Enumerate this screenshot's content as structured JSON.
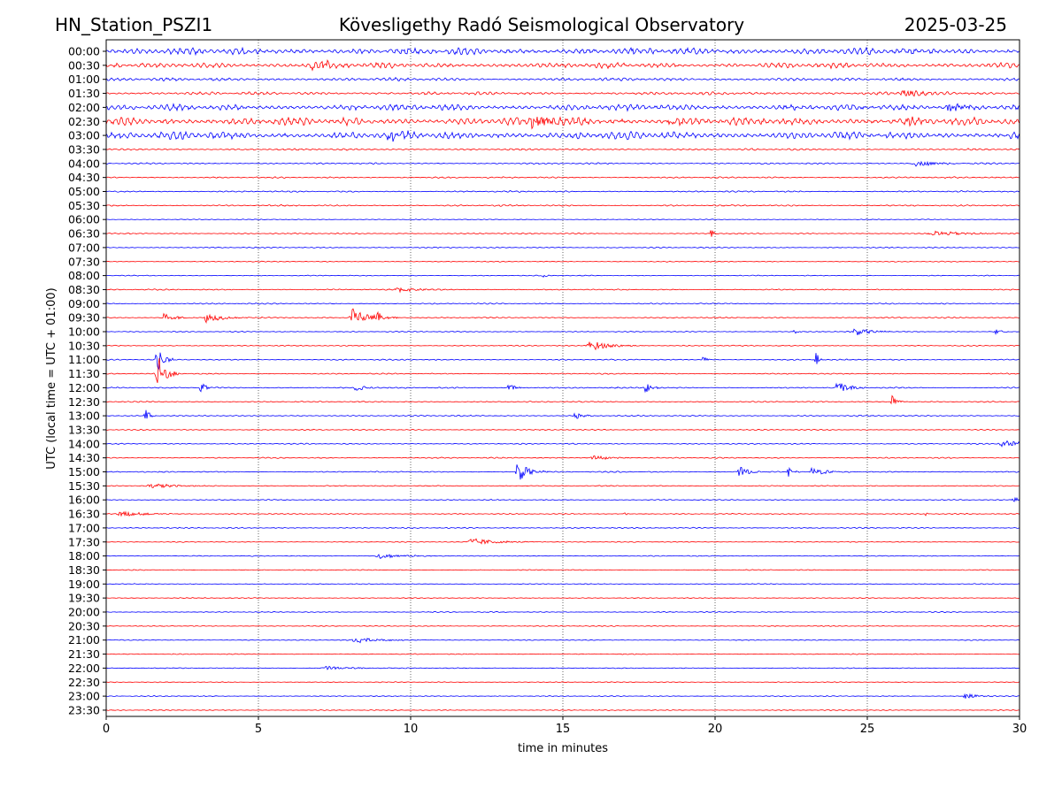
{
  "header": {
    "station": "HN_Station_PSZI1",
    "observatory": "Kövesligethy Radó Seismological Observatory",
    "date": "2025-03-25"
  },
  "chart_data": {
    "type": "line",
    "title": "Kövesligethy Radó Seismological Observatory",
    "xlabel": "time in minutes",
    "ylabel": "UTC (local time = UTC + 01:00)",
    "xlim": [
      0,
      30
    ],
    "xticks": [
      "0",
      "5",
      "10",
      "15",
      "20",
      "25",
      "30"
    ],
    "grid": "vertical dotted lines at 5-minute ticks",
    "row_labels": [
      "00:00",
      "00:30",
      "01:00",
      "01:30",
      "02:00",
      "02:30",
      "03:00",
      "03:30",
      "04:00",
      "04:30",
      "05:00",
      "05:30",
      "06:00",
      "06:30",
      "07:00",
      "07:30",
      "08:00",
      "08:30",
      "09:00",
      "09:30",
      "10:00",
      "10:30",
      "11:00",
      "11:30",
      "12:00",
      "12:30",
      "13:00",
      "13:30",
      "14:00",
      "14:30",
      "15:00",
      "15:30",
      "16:00",
      "16:30",
      "17:00",
      "17:30",
      "18:00",
      "18:30",
      "19:00",
      "19:30",
      "20:00",
      "20:30",
      "21:00",
      "21:30",
      "22:00",
      "22:30",
      "23:00",
      "23:30"
    ],
    "colors": [
      "#0000ff",
      "#ff0000"
    ],
    "row_noise_levels": [
      4.5,
      3.5,
      2,
      2,
      4,
      5,
      5,
      1.2,
      1,
      1,
      1,
      1,
      0.6,
      0.8,
      0.8,
      0.6,
      0.6,
      0.8,
      0.8,
      0.8,
      0.7,
      0.7,
      0.8,
      0.8,
      0.9,
      0.8,
      0.9,
      0.7,
      0.8,
      0.8,
      0.8,
      0.7,
      0.7,
      0.7,
      0.8,
      0.6,
      0.6,
      0.6,
      0.6,
      0.6,
      0.6,
      0.6,
      0.6,
      0.6,
      0.6,
      0.6,
      0.6,
      0.6
    ],
    "events": [
      {
        "row": 23,
        "minute": 1.65,
        "amplitude": 28,
        "duration_min": 0.25
      },
      {
        "row": 22,
        "minute": 1.65,
        "amplitude": 16,
        "duration_min": 0.2
      },
      {
        "row": 26,
        "minute": 1.25,
        "amplitude": 12,
        "duration_min": 0.12
      },
      {
        "row": 19,
        "minute": 1.9,
        "amplitude": 7,
        "duration_min": 0.3
      },
      {
        "row": 19,
        "minute": 3.3,
        "amplitude": 6,
        "duration_min": 0.5
      },
      {
        "row": 19,
        "minute": 8.1,
        "amplitude": 12,
        "duration_min": 0.5
      },
      {
        "row": 19,
        "minute": 8.9,
        "amplitude": 5,
        "duration_min": 0.2
      },
      {
        "row": 21,
        "minute": 15.9,
        "amplitude": 6,
        "duration_min": 0.6
      },
      {
        "row": 22,
        "minute": 23.3,
        "amplitude": 11,
        "duration_min": 0.1
      },
      {
        "row": 22,
        "minute": 19.6,
        "amplitude": 6,
        "duration_min": 0.1
      },
      {
        "row": 24,
        "minute": 3.1,
        "amplitude": 6,
        "duration_min": 0.2
      },
      {
        "row": 24,
        "minute": 8.2,
        "amplitude": 4,
        "duration_min": 0.3
      },
      {
        "row": 24,
        "minute": 13.2,
        "amplitude": 5,
        "duration_min": 0.2
      },
      {
        "row": 24,
        "minute": 17.7,
        "amplitude": 7,
        "duration_min": 0.2
      },
      {
        "row": 24,
        "minute": 24.0,
        "amplitude": 9,
        "duration_min": 0.3
      },
      {
        "row": 25,
        "minute": 25.8,
        "amplitude": 8,
        "duration_min": 0.15
      },
      {
        "row": 26,
        "minute": 15.4,
        "amplitude": 5,
        "duration_min": 0.2
      },
      {
        "row": 30,
        "minute": 13.5,
        "amplitude": 12,
        "duration_min": 0.35
      },
      {
        "row": 30,
        "minute": 20.8,
        "amplitude": 6,
        "duration_min": 0.3
      },
      {
        "row": 30,
        "minute": 22.4,
        "amplitude": 6,
        "duration_min": 0.15
      },
      {
        "row": 30,
        "minute": 23.2,
        "amplitude": 6,
        "duration_min": 0.4
      },
      {
        "row": 28,
        "minute": 29.5,
        "amplitude": 4,
        "duration_min": 1.0
      },
      {
        "row": 16,
        "minute": 14.3,
        "amplitude": 7,
        "duration_min": 0.08
      },
      {
        "row": 13,
        "minute": 19.85,
        "amplitude": 7,
        "duration_min": 0.1
      },
      {
        "row": 13,
        "minute": 27.2,
        "amplitude": 3,
        "duration_min": 1.0
      },
      {
        "row": 8,
        "minute": 26.6,
        "amplitude": 3,
        "duration_min": 0.8
      },
      {
        "row": 35,
        "minute": 12.0,
        "amplitude": 4,
        "duration_min": 0.8
      },
      {
        "row": 33,
        "minute": 0.5,
        "amplitude": 3,
        "duration_min": 0.8
      },
      {
        "row": 31,
        "minute": 1.5,
        "amplitude": 3,
        "duration_min": 0.7
      },
      {
        "row": 36,
        "minute": 9.0,
        "amplitude": 3,
        "duration_min": 0.8
      },
      {
        "row": 42,
        "minute": 8.2,
        "amplitude": 3,
        "duration_min": 0.8
      },
      {
        "row": 44,
        "minute": 7.2,
        "amplitude": 2.5,
        "duration_min": 0.7
      },
      {
        "row": 46,
        "minute": 28.2,
        "amplitude": 3,
        "duration_min": 0.4
      },
      {
        "row": 32,
        "minute": 29.8,
        "amplitude": 3,
        "duration_min": 0.3
      },
      {
        "row": 17,
        "minute": 9.6,
        "amplitude": 3,
        "duration_min": 0.6
      },
      {
        "row": 20,
        "minute": 22.6,
        "amplitude": 4,
        "duration_min": 0.1
      },
      {
        "row": 20,
        "minute": 24.6,
        "amplitude": 4,
        "duration_min": 0.6
      },
      {
        "row": 20,
        "minute": 29.2,
        "amplitude": 3,
        "duration_min": 0.2
      },
      {
        "row": 29,
        "minute": 16.0,
        "amplitude": 3,
        "duration_min": 0.5
      },
      {
        "row": 33,
        "minute": 17.0,
        "amplitude": 3,
        "duration_min": 0.08
      },
      {
        "row": 33,
        "minute": 26.9,
        "amplitude": 3,
        "duration_min": 0.08
      },
      {
        "row": 1,
        "minute": 6.8,
        "amplitude": 6,
        "duration_min": 0.6
      },
      {
        "row": 5,
        "minute": 14.0,
        "amplitude": 7,
        "duration_min": 0.6
      },
      {
        "row": 5,
        "minute": 18.5,
        "amplitude": 6,
        "duration_min": 0.4
      },
      {
        "row": 5,
        "minute": 26.2,
        "amplitude": 6,
        "duration_min": 0.5
      },
      {
        "row": 3,
        "minute": 26.2,
        "amplitude": 5,
        "duration_min": 0.6
      },
      {
        "row": 6,
        "minute": 9.3,
        "amplitude": 9,
        "duration_min": 0.3
      },
      {
        "row": 4,
        "minute": 27.7,
        "amplitude": 5,
        "duration_min": 0.6
      }
    ]
  }
}
